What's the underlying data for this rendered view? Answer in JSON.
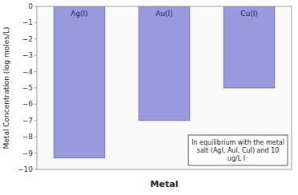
{
  "chart_data": {
    "type": "bar",
    "xlabel": "Metal",
    "ylabel": "Metal Concentration (log moles/L)",
    "categories": [
      "Ag(I)",
      "Au(I)",
      "Cu(I)"
    ],
    "values": [
      -9.3,
      -7.0,
      -5.0
    ],
    "color": "#9999dd",
    "ylim": [
      -10,
      0
    ],
    "yticks": [
      0,
      {
        "value": -1,
        "label": "−1"
      },
      {
        "value": -2,
        "label": "−2"
      },
      {
        "value": -3,
        "label": "−3"
      },
      {
        "value": -4,
        "label": "−4"
      },
      {
        "value": -5,
        "label": "−5"
      },
      {
        "value": -6,
        "label": "−6"
      },
      {
        "value": -7,
        "label": "−7"
      },
      {
        "value": -8,
        "label": "−8"
      },
      {
        "value": -9,
        "label": "−9"
      },
      {
        "value": -10,
        "label": "−10"
      }
    ],
    "annotation": "In equilibrium with the metal\nsalt (AgI, AuI, CuI) and 10\nug/L I⁻",
    "grid": false
  }
}
